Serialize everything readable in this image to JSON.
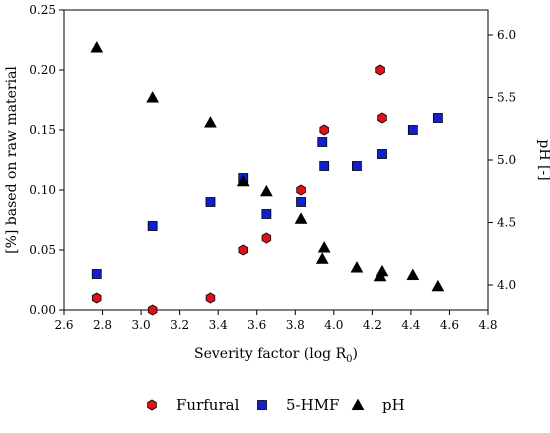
{
  "chart_data": {
    "type": "scatter",
    "title": "",
    "xlabel": "Severity factor (log R",
    "xlabel_sub": "0",
    "xlabel_close": ")",
    "ylabel_left": "[%] based on raw material",
    "ylabel_right": "pH [-]",
    "xlim": [
      2.6,
      4.8
    ],
    "ylim_left": [
      0.0,
      0.25
    ],
    "ylim_right": [
      3.8,
      6.2
    ],
    "x_ticks": [
      "2.6",
      "2.8",
      "3.0",
      "3.2",
      "3.4",
      "3.6",
      "3.8",
      "4.0",
      "4.2",
      "4.4",
      "4.6",
      "4.8"
    ],
    "y_left_ticks": [
      "0.00",
      "0.05",
      "0.10",
      "0.15",
      "0.20",
      "0.25"
    ],
    "y_right_ticks": [
      "4.0",
      "4.5",
      "5.0",
      "5.5",
      "6.0"
    ],
    "legend_position": "bottom",
    "series": [
      {
        "name": "Furfural",
        "axis": "left",
        "marker": "hexagon",
        "color": "#e0101a",
        "points": [
          [
            2.77,
            0.01
          ],
          [
            3.06,
            0.0
          ],
          [
            3.36,
            0.01
          ],
          [
            3.53,
            0.05
          ],
          [
            3.65,
            0.06
          ],
          [
            3.83,
            0.1
          ],
          [
            3.95,
            0.15
          ],
          [
            4.24,
            0.2
          ],
          [
            4.25,
            0.16
          ]
        ]
      },
      {
        "name": "5-HMF",
        "axis": "left",
        "marker": "square",
        "color": "#1020d0",
        "points": [
          [
            2.77,
            0.03
          ],
          [
            3.06,
            0.07
          ],
          [
            3.36,
            0.09
          ],
          [
            3.53,
            0.11
          ],
          [
            3.65,
            0.08
          ],
          [
            3.83,
            0.09
          ],
          [
            3.94,
            0.14
          ],
          [
            3.95,
            0.12
          ],
          [
            4.12,
            0.12
          ],
          [
            4.25,
            0.13
          ],
          [
            4.41,
            0.15
          ],
          [
            4.54,
            0.16
          ]
        ]
      },
      {
        "name": "pH",
        "axis": "right",
        "marker": "triangle",
        "color": "#000000",
        "points": [
          [
            2.77,
            5.9
          ],
          [
            3.06,
            5.5
          ],
          [
            3.36,
            5.3
          ],
          [
            3.53,
            4.83
          ],
          [
            3.65,
            4.75
          ],
          [
            3.83,
            4.53
          ],
          [
            3.94,
            4.21
          ],
          [
            3.95,
            4.3
          ],
          [
            4.12,
            4.14
          ],
          [
            4.24,
            4.07
          ],
          [
            4.25,
            4.11
          ],
          [
            4.41,
            4.08
          ],
          [
            4.54,
            3.99
          ]
        ]
      }
    ]
  }
}
